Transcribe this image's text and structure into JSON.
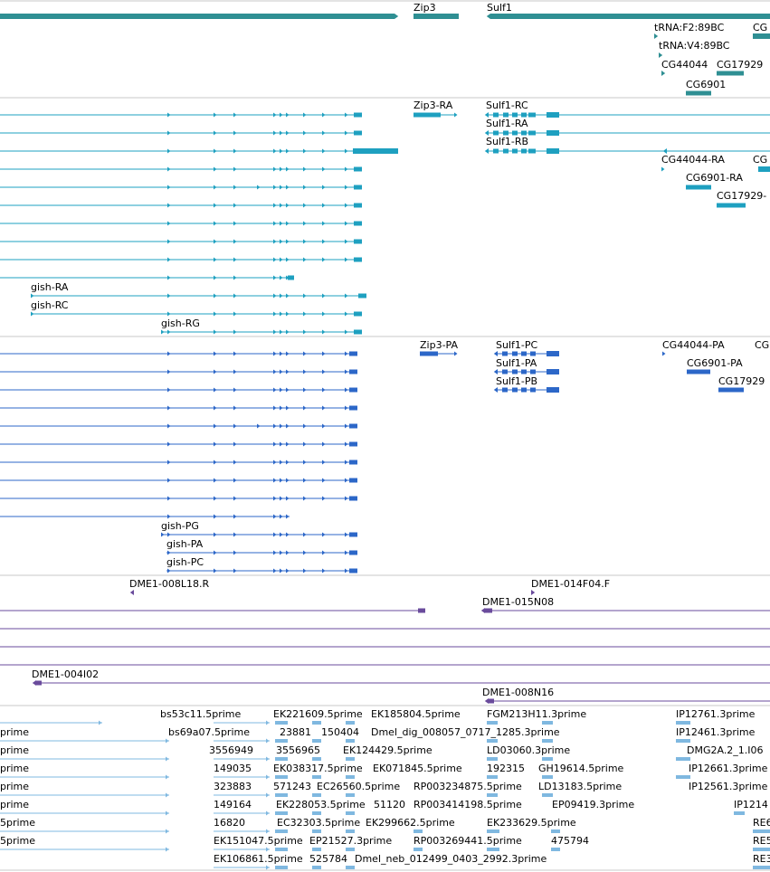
{
  "colors": {
    "gene": "#2f8f93",
    "flybase_tx": "#1ea0c0",
    "refseq_tx": "#2c67c8",
    "clone": "#6a4b9c",
    "est": "#7fb8e0",
    "divider": "#c8c8c8"
  },
  "tracks": {
    "genes": {
      "labels": [
        "Zip3",
        "Sulf1",
        "tRNA:F2:89BC",
        "CG",
        "tRNA:V4:89BC",
        "CG44044",
        "CG17929",
        "CG6901"
      ]
    },
    "flybase_transcripts": {
      "labels": [
        "Zip3-RA",
        "Sulf1-RC",
        "Sulf1-RA",
        "Sulf1-RB",
        "CG44044-RA",
        "CG",
        "CG6901-RA",
        "CG17929-",
        "gish-RA",
        "gish-RC",
        "gish-RG"
      ]
    },
    "refseq_transcripts": {
      "labels": [
        "Zip3-PA",
        "Sulf1-PC",
        "CG44044-PA",
        "CG",
        "Sulf1-PA",
        "CG6901-PA",
        "Sulf1-PB",
        "CG17929",
        "gish-PG",
        "gish-PA",
        "gish-PC"
      ]
    },
    "clones": {
      "labels": [
        "DME1-008L18.R",
        "DME1-014F04.F",
        "DME1-015N08",
        "DME1-004I02",
        "DME1-008N16"
      ]
    },
    "ests": {
      "labels": [
        "bs53c11.5prime",
        "EK221609.5prime",
        "EK185804.5prime",
        "FGM213H11.3prime",
        "IP12761.3prime",
        "prime",
        "bs69a07.5prime",
        "23881",
        "150404",
        "Dmel_dig_008057_0717_1285.3prime",
        "IP12461.3prime",
        "prime",
        "3556949",
        "3556965",
        "EK124429.5prime",
        "LD03060.3prime",
        "DMG2A.2_1.I06",
        "prime",
        "149035",
        "EK038317.5prime",
        "EK071845.5prime",
        "192315",
        "GH19614.5prime",
        "IP12661.3prime",
        "prime",
        "323883",
        "571243",
        "EC26560.5prime",
        "RP003234875.5prime",
        "LD13183.5prime",
        "IP12561.3prime",
        "prime",
        "149164",
        "EK228053.5prime",
        "51120",
        "RP003414198.5prime",
        "EP09419.3prime",
        "IP1214",
        "5prime",
        "16820",
        "EC32303.5prime",
        "EK299662.5prime",
        "EK233629.5prime",
        "RE6",
        "5prime",
        "EK151047.5prime",
        "EP21527.3prime",
        "RP003269441.5prime",
        "475794",
        "RE5",
        "EK106861.5prime",
        "525784",
        "Dmel_neb_012499_0403_2992.3prime",
        "RE3"
      ]
    }
  }
}
